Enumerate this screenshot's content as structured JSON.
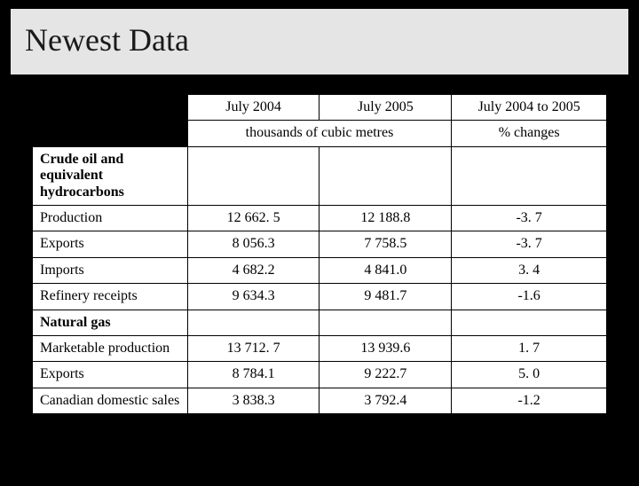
{
  "title": "Newest Data",
  "colors": {
    "page_bg": "#000000",
    "title_bg": "#e5e5e5",
    "title_border": "#000000",
    "table_bg": "#ffffff",
    "cell_border": "#000000",
    "text": "#000000"
  },
  "table": {
    "headers": {
      "col1": "July 2004",
      "col2": "July 2005",
      "col3": "July 2004 to 2005",
      "sub_left": "thousands of cubic metres",
      "sub_right": "% changes"
    },
    "sections": [
      {
        "label": "Crude oil and equivalent hydrocarbons",
        "rows": [
          {
            "label": "Production",
            "v1": "12 662. 5",
            "v2": "12 188.8",
            "v3": "-3. 7"
          },
          {
            "label": "Exports",
            "v1": "8 056.3",
            "v2": "7 758.5",
            "v3": "-3. 7"
          },
          {
            "label": "Imports",
            "v1": "4 682.2",
            "v2": "4 841.0",
            "v3": "3. 4"
          },
          {
            "label": "Refinery receipts",
            "v1": "9 634.3",
            "v2": "9 481.7",
            "v3": "-1.6"
          }
        ]
      },
      {
        "label": "Natural gas",
        "rows": [
          {
            "label": "Marketable production",
            "v1": "13 712. 7",
            "v2": "13 939.6",
            "v3": "1. 7"
          },
          {
            "label": "Exports",
            "v1": "8 784.1",
            "v2": "9 222.7",
            "v3": "5. 0"
          },
          {
            "label": "Canadian domestic sales",
            "v1": "3 838.3",
            "v2": "3 792.4",
            "v3": "-1.2"
          }
        ]
      }
    ]
  }
}
